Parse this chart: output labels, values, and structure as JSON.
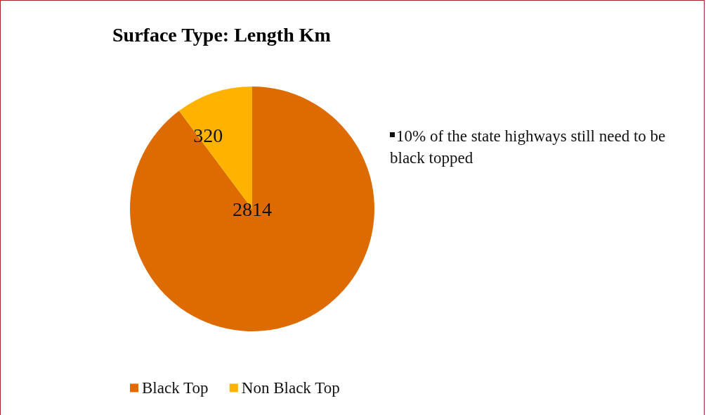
{
  "chart_data": {
    "type": "pie",
    "title": "Surface Type: Length Km",
    "categories": [
      "Black Top",
      "Non Black Top"
    ],
    "values": [
      2814,
      320
    ],
    "colors": [
      "#dd6b00",
      "#ffb300"
    ],
    "data_labels": true,
    "legend": "bottom",
    "annotations": [
      "10% of the state highways still need to be black topped"
    ]
  }
}
